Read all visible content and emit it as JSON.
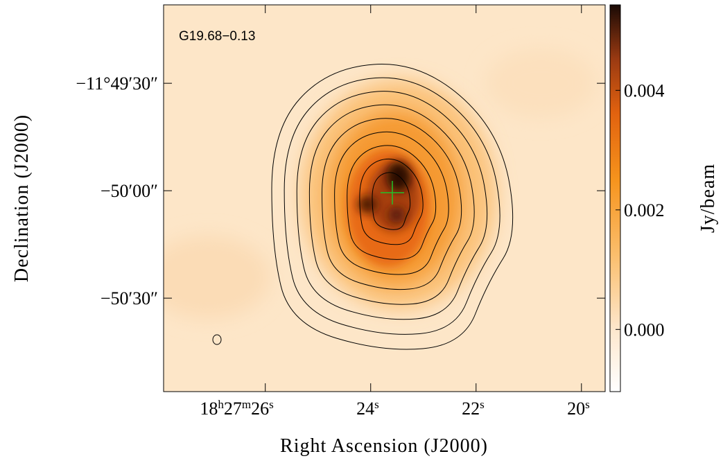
{
  "chart_data": {
    "type": "image",
    "title": "G19.68−0.13",
    "xlabel": "Right Ascension (J2000)",
    "ylabel": "Declination (J2000)",
    "xlim": [
      27.93,
      19.55
    ],
    "xticks": [
      {
        "value": 26,
        "label": "18h27m26s"
      },
      {
        "value": 24,
        "label": "24s"
      },
      {
        "value": 22,
        "label": "22s"
      },
      {
        "value": 20,
        "label": "20s"
      }
    ],
    "ylim": [
      -42656.1,
      -42548.1
    ],
    "yticks": [
      {
        "value": -42570,
        "label": "−11°49′30″"
      },
      {
        "value": -42600,
        "label": "−50′00″"
      },
      {
        "value": -42630,
        "label": "−50′30″"
      }
    ],
    "colorbar": {
      "label": "Jy/beam",
      "lim": [
        -0.00104,
        0.00543
      ],
      "ticks": [
        {
          "value": 0,
          "label": "0.000"
        },
        0.002,
        0.004
      ]
    }
  }
}
